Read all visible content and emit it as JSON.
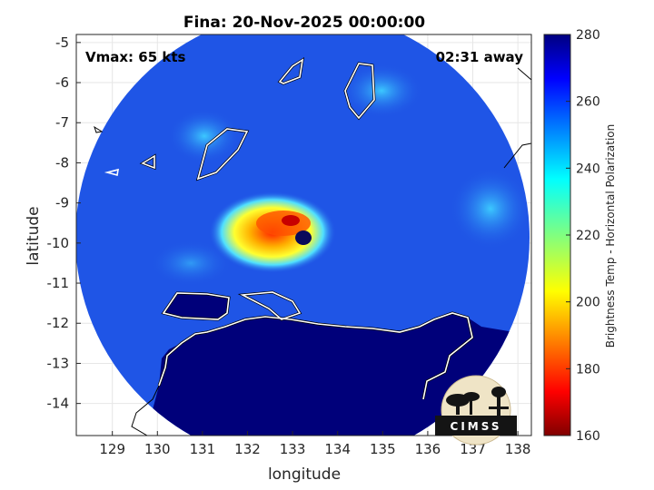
{
  "chart_data": {
    "type": "heatmap",
    "title": "Fina: 20-Nov-2025 00:00:00",
    "xlabel": "longitude",
    "ylabel": "latitude",
    "xlim": [
      128.2,
      138.3
    ],
    "ylim": [
      -14.8,
      -4.8
    ],
    "xticks": [
      129,
      130,
      131,
      132,
      133,
      134,
      135,
      136,
      137,
      138
    ],
    "yticks": [
      -5,
      -6,
      -7,
      -8,
      -9,
      -10,
      -11,
      -12,
      -13,
      -14
    ],
    "grid": true,
    "annotations": {
      "vmax": "Vmax: 65 kts",
      "away": "02:31 away"
    },
    "colorbar": {
      "label": "Brightness Temp - Horizontal Polarization",
      "range": [
        160,
        280
      ],
      "ticks": [
        280,
        260,
        240,
        220,
        200,
        180,
        160
      ],
      "colormap": "jet"
    },
    "storm_center": {
      "lon": 133.05,
      "lat": -9.9
    },
    "logo": "CIMSS"
  },
  "colors": {
    "land": "#00007a",
    "ocean": "#1f55e6",
    "coast": "#ffffff"
  }
}
